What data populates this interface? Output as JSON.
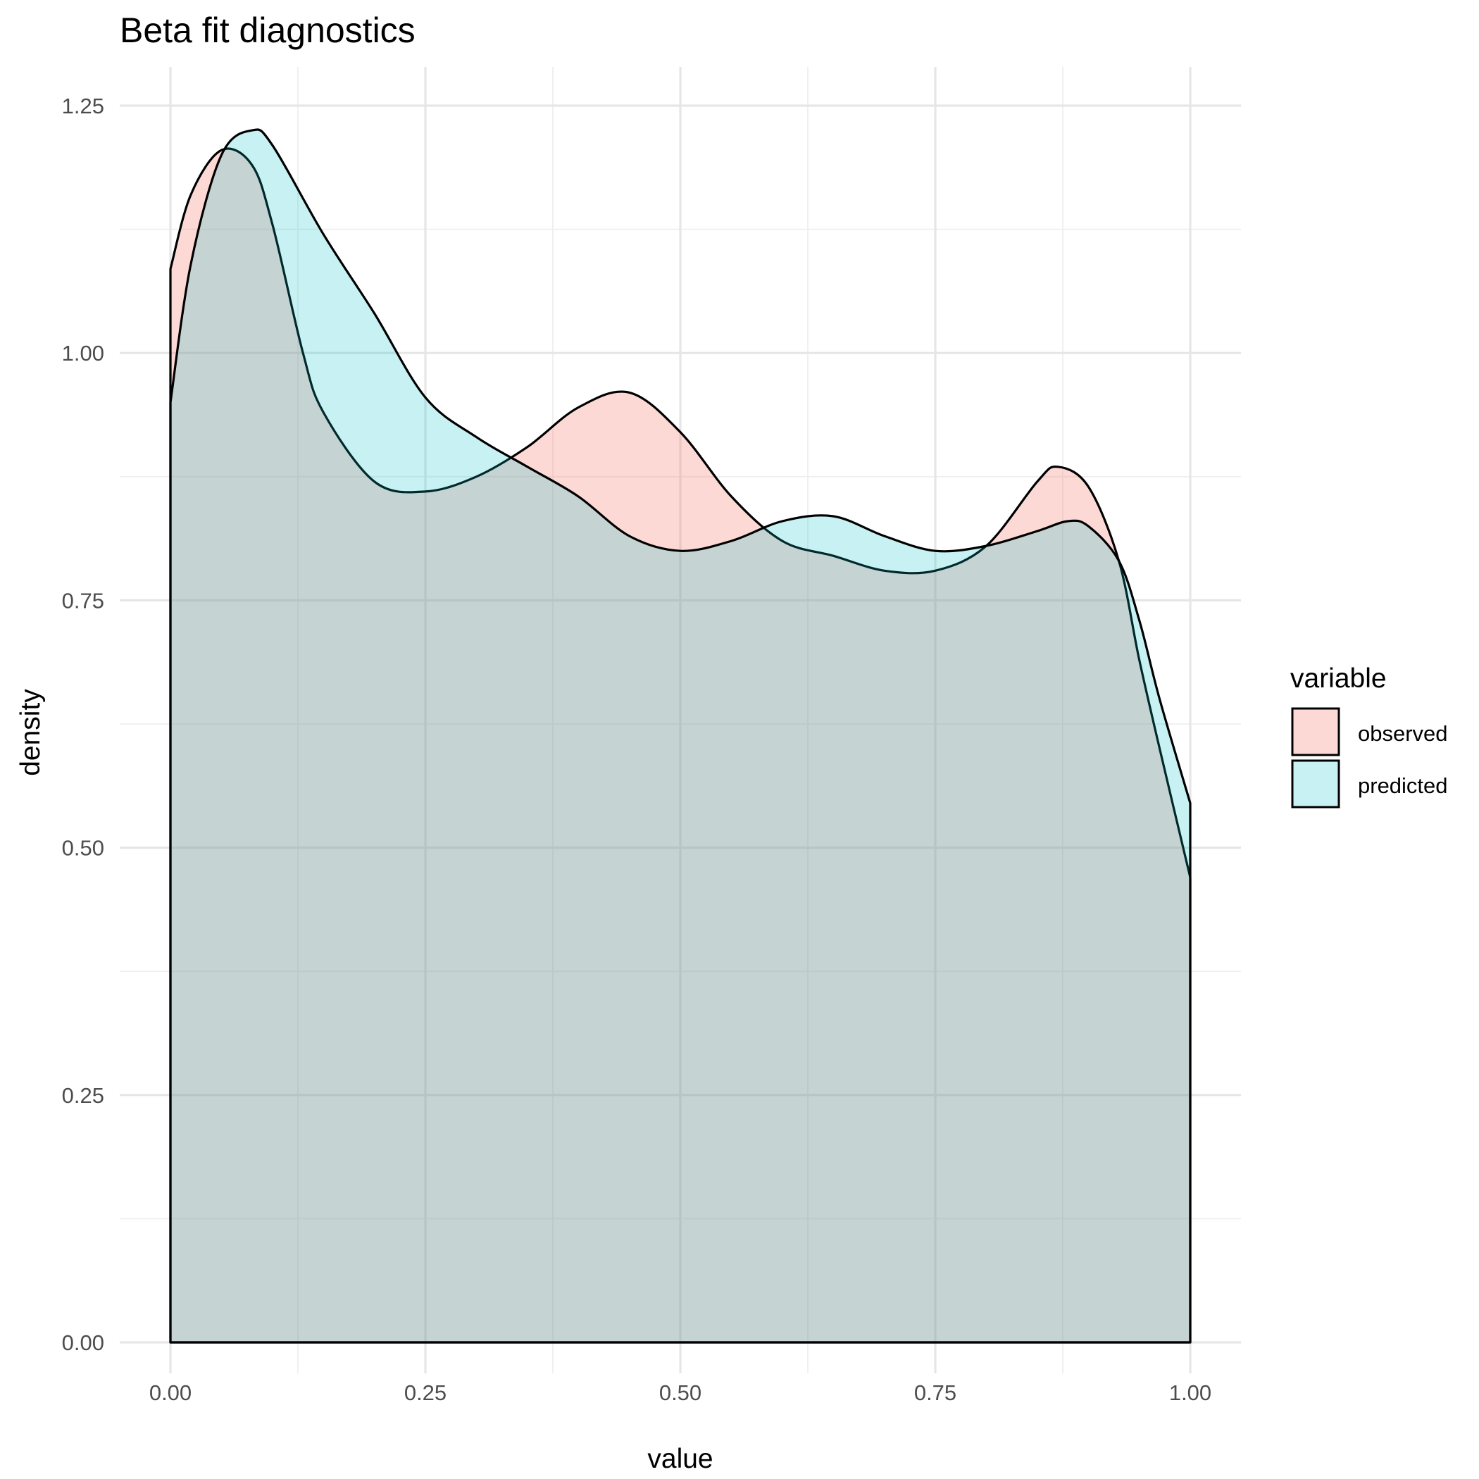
{
  "chart_data": {
    "type": "area",
    "title": "Beta fit diagnostics",
    "xlabel": "value",
    "ylabel": "density",
    "xlim": [
      0,
      1
    ],
    "ylim": [
      0,
      1.25
    ],
    "x_ticks": [
      "0.00",
      "0.25",
      "0.50",
      "0.75",
      "1.00"
    ],
    "y_ticks": [
      "0.00",
      "0.25",
      "0.50",
      "0.75",
      "1.00",
      "1.25"
    ],
    "grid": true,
    "legend": {
      "title": "variable",
      "position": "right"
    },
    "series": [
      {
        "name": "observed",
        "color": "#F8766D",
        "x": [
          0.0,
          0.02,
          0.05,
          0.08,
          0.1,
          0.13,
          0.15,
          0.2,
          0.25,
          0.3,
          0.35,
          0.4,
          0.45,
          0.5,
          0.55,
          0.6,
          0.65,
          0.7,
          0.75,
          0.8,
          0.85,
          0.87,
          0.9,
          0.93,
          0.95,
          0.97,
          1.0
        ],
        "y": [
          1.085,
          1.16,
          1.205,
          1.19,
          1.13,
          1.0,
          0.94,
          0.87,
          0.86,
          0.875,
          0.905,
          0.945,
          0.96,
          0.92,
          0.855,
          0.81,
          0.795,
          0.78,
          0.78,
          0.805,
          0.87,
          0.885,
          0.865,
          0.79,
          0.69,
          0.6,
          0.47
        ]
      },
      {
        "name": "predicted",
        "color": "#00BFC4",
        "x": [
          0.0,
          0.02,
          0.05,
          0.08,
          0.1,
          0.15,
          0.2,
          0.25,
          0.3,
          0.35,
          0.4,
          0.45,
          0.5,
          0.55,
          0.6,
          0.65,
          0.7,
          0.75,
          0.8,
          0.85,
          0.88,
          0.9,
          0.93,
          0.95,
          0.97,
          1.0
        ],
        "y": [
          0.95,
          1.09,
          1.2,
          1.225,
          1.21,
          1.12,
          1.04,
          0.955,
          0.915,
          0.885,
          0.855,
          0.815,
          0.8,
          0.81,
          0.83,
          0.835,
          0.815,
          0.8,
          0.805,
          0.82,
          0.83,
          0.825,
          0.79,
          0.73,
          0.65,
          0.545
        ]
      }
    ]
  }
}
